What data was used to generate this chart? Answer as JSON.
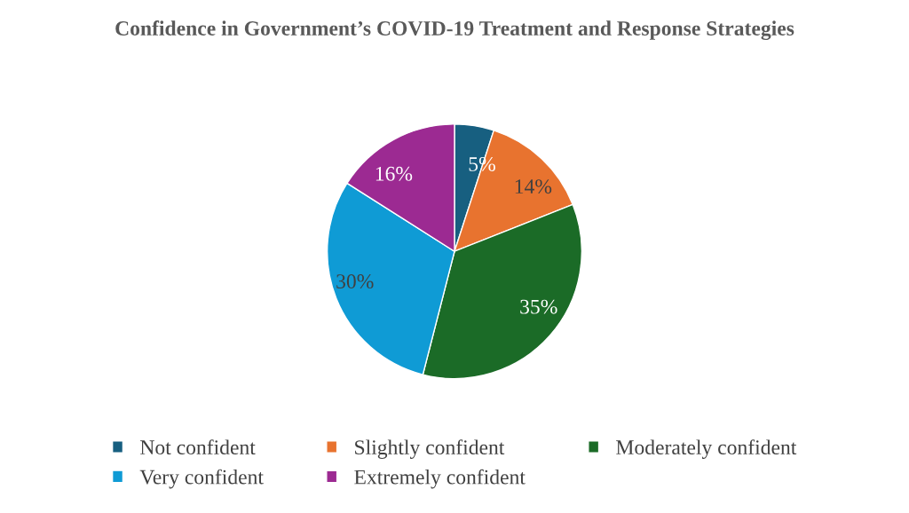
{
  "chart_data": {
    "type": "pie",
    "title": "Confidence in Government’s COVID-19 Treatment and Response Strategies",
    "categories": [
      "Not confident",
      "Slightly confident",
      "Moderately confident",
      "Very confident",
      "Extremely confident"
    ],
    "values": [
      5,
      14,
      35,
      30,
      16
    ],
    "colors": [
      "#175f80",
      "#e8732f",
      "#1b6b27",
      "#0f9bd5",
      "#9c2a92"
    ],
    "value_labels": [
      "5%",
      "14%",
      "35%",
      "30%",
      "16%"
    ],
    "legend": "bottom"
  }
}
